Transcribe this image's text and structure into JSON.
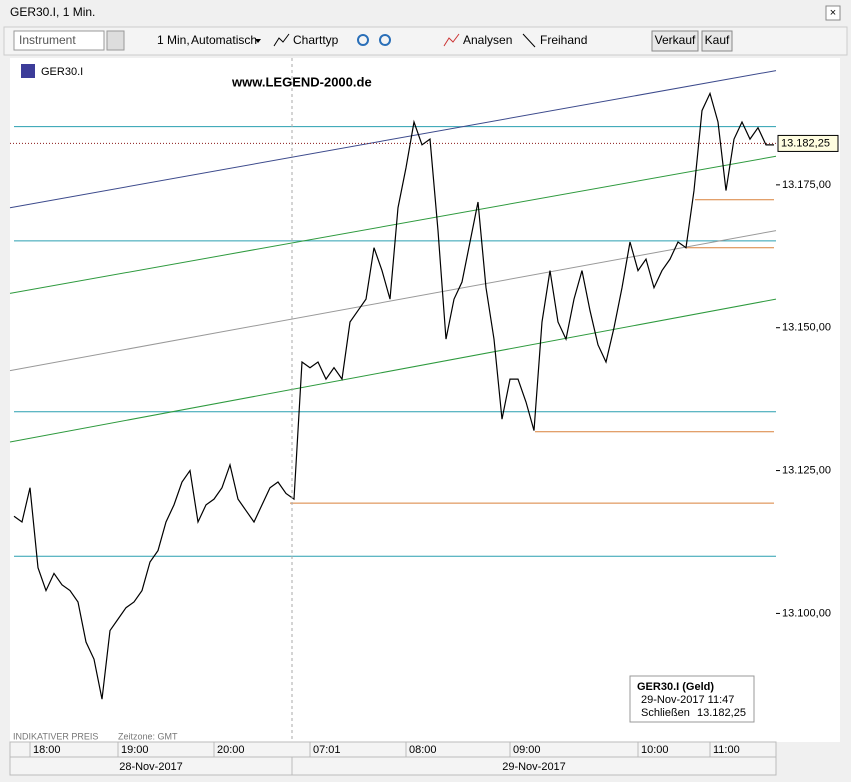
{
  "window": {
    "title": "GER30.I, 1 Min."
  },
  "toolbar": {
    "instrument": "Instrument",
    "interval": "1 Min,",
    "mode": "Automatisch",
    "chart_type": "Charttyp",
    "analyses": "Analysen",
    "freehand": "Freihand",
    "sell": "Verkauf",
    "buy": "Kauf"
  },
  "chart_data": {
    "type": "line",
    "symbol": "GER30.I",
    "watermark": "www.LEGEND-2000.de",
    "footer": "INDIKATIVER PREIS",
    "timezone": "Zeitzone: GMT",
    "categories": [
      null,
      null,
      "18:00",
      null,
      null,
      null,
      null,
      null,
      null,
      null,
      null,
      null,
      null,
      "19:00",
      null,
      null,
      null,
      null,
      null,
      null,
      null,
      null,
      null,
      null,
      null,
      "20:00",
      null,
      null,
      null,
      null,
      null,
      null,
      null,
      null,
      null,
      null,
      null,
      "07:01",
      null,
      null,
      null,
      null,
      null,
      null,
      null,
      null,
      null,
      null,
      null,
      "08:00",
      null,
      null,
      null,
      null,
      null,
      null,
      null,
      null,
      null,
      null,
      null,
      null,
      "09:00",
      null,
      null,
      null,
      null,
      null,
      null,
      null,
      null,
      null,
      null,
      null,
      null,
      null,
      null,
      null,
      "10:00",
      null,
      null,
      null,
      null,
      null,
      null,
      null,
      null,
      "11:00",
      null,
      null,
      null,
      null,
      null,
      null,
      null,
      null
    ],
    "dates": [
      "28-Nov-2017",
      "29-Nov-2017"
    ],
    "series": [
      {
        "name": "GER30.I",
        "color": "#000000",
        "values": [
          13117,
          13116,
          13122,
          13108,
          13104,
          13107,
          13105,
          13104,
          13102,
          13095,
          13092,
          13085,
          13097,
          13099,
          13101,
          13102,
          13104,
          13109,
          13111,
          13116,
          13119,
          13123,
          13125,
          13116,
          13119,
          13120,
          13122,
          13126,
          13120,
          13118,
          13116,
          13119,
          13122,
          13123,
          13121,
          13120,
          13144,
          13143,
          13144,
          13141,
          13143,
          13141,
          13151,
          13153,
          13155,
          13164,
          13160,
          13155,
          13171,
          13178,
          13186,
          13182,
          13183,
          13167,
          13148,
          13155,
          13158,
          13165,
          13172,
          13157,
          13148,
          13134,
          13141,
          13141,
          13137,
          13132,
          13151,
          13160,
          13151,
          13148,
          13155,
          13160,
          13153,
          13147,
          13144,
          13150,
          13157,
          13165,
          13160,
          13162,
          13157,
          13160,
          13162,
          13165,
          13164,
          13174,
          13188,
          13191,
          13186,
          13174,
          13183,
          13186,
          13183,
          13185,
          13182,
          13182
        ]
      }
    ],
    "ylim": [
      13077.5,
      13197.2
    ],
    "yticks": [
      {
        "value": 13100,
        "label": "13.100,00"
      },
      {
        "value": 13125,
        "label": "13.125,00"
      },
      {
        "value": 13150,
        "label": "13.150,00"
      },
      {
        "value": 13175,
        "label": "13.175,00"
      }
    ],
    "last_price": {
      "value": 13182.25,
      "label": "13.182,25"
    },
    "levels": {
      "color": "#2a9fb0",
      "values": [
        13185.2,
        13165.2,
        13135.3,
        13110
      ]
    },
    "orange_levels": {
      "color": "#d9813a",
      "values": [
        13172.4,
        13164,
        13131.8,
        13119.3
      ]
    },
    "trend_lines": [
      {
        "color": "#3c4a8c",
        "values": [
          13171,
          13195
        ]
      },
      {
        "color": "#2e9a3e",
        "values": [
          13156,
          13180
        ]
      },
      {
        "color": "#999999",
        "values": [
          13142.5,
          13167
        ]
      },
      {
        "color": "#2e9a3e",
        "values": [
          13130,
          13155
        ]
      }
    ],
    "info": {
      "title": "GER30.I (Geld)",
      "time": "29-Nov-2017 11:47",
      "close_label": "Schließen"
    }
  }
}
